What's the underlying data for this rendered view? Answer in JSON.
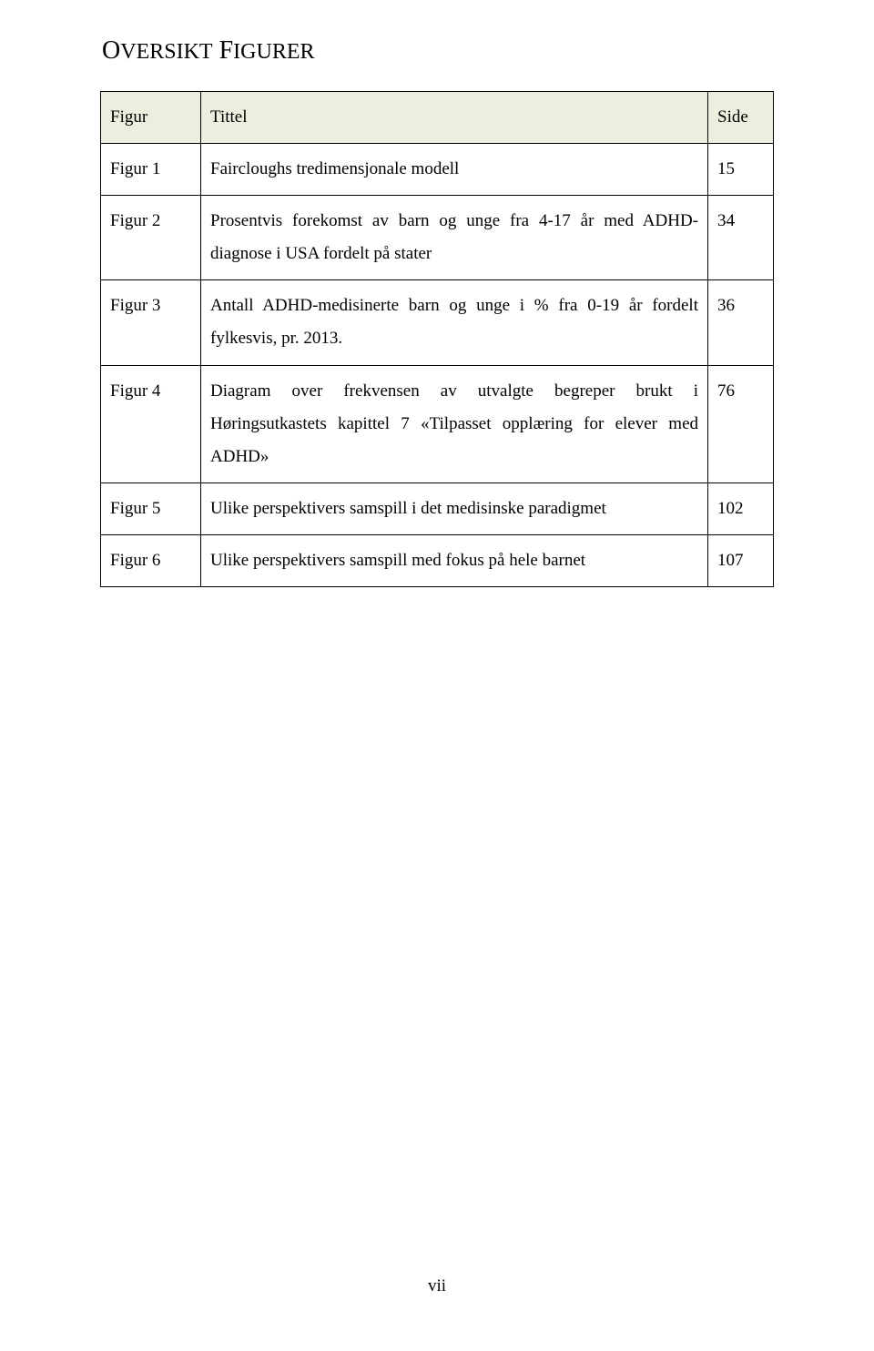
{
  "heading": {
    "first_cap": "O",
    "rest_first_word": "VERSIKT",
    "second_cap": " F",
    "rest_second_word": "IGURER"
  },
  "table": {
    "header_bg": "#eaf0dd",
    "border_color": "#000000",
    "columns": {
      "figur": "Figur",
      "tittel": "Tittel",
      "side": "Side"
    },
    "rows": [
      {
        "figur": "Figur 1",
        "tittel": "Faircloughs tredimensjonale modell",
        "side": "15"
      },
      {
        "figur": "Figur 2",
        "tittel": "Prosentvis forekomst av barn og unge fra 4-17 år med ADHD-diagnose i USA fordelt på stater",
        "side": "34"
      },
      {
        "figur": "Figur 3",
        "tittel": "Antall ADHD-medisinerte barn og unge i % fra 0-19 år fordelt fylkesvis, pr. 2013.",
        "side": "36"
      },
      {
        "figur": "Figur 4",
        "tittel": "Diagram over frekvensen av utvalgte begreper brukt i Høringsutkastets kapittel 7 «Tilpasset opplæring for elever med ADHD»",
        "side": "76"
      },
      {
        "figur": "Figur 5",
        "tittel": "Ulike perspektivers samspill i det medisinske paradigmet",
        "side": "102"
      },
      {
        "figur": "Figur 6",
        "tittel": "Ulike perspektivers samspill med fokus på hele barnet",
        "side": "107"
      }
    ]
  },
  "footer": {
    "page_number": "vii"
  }
}
